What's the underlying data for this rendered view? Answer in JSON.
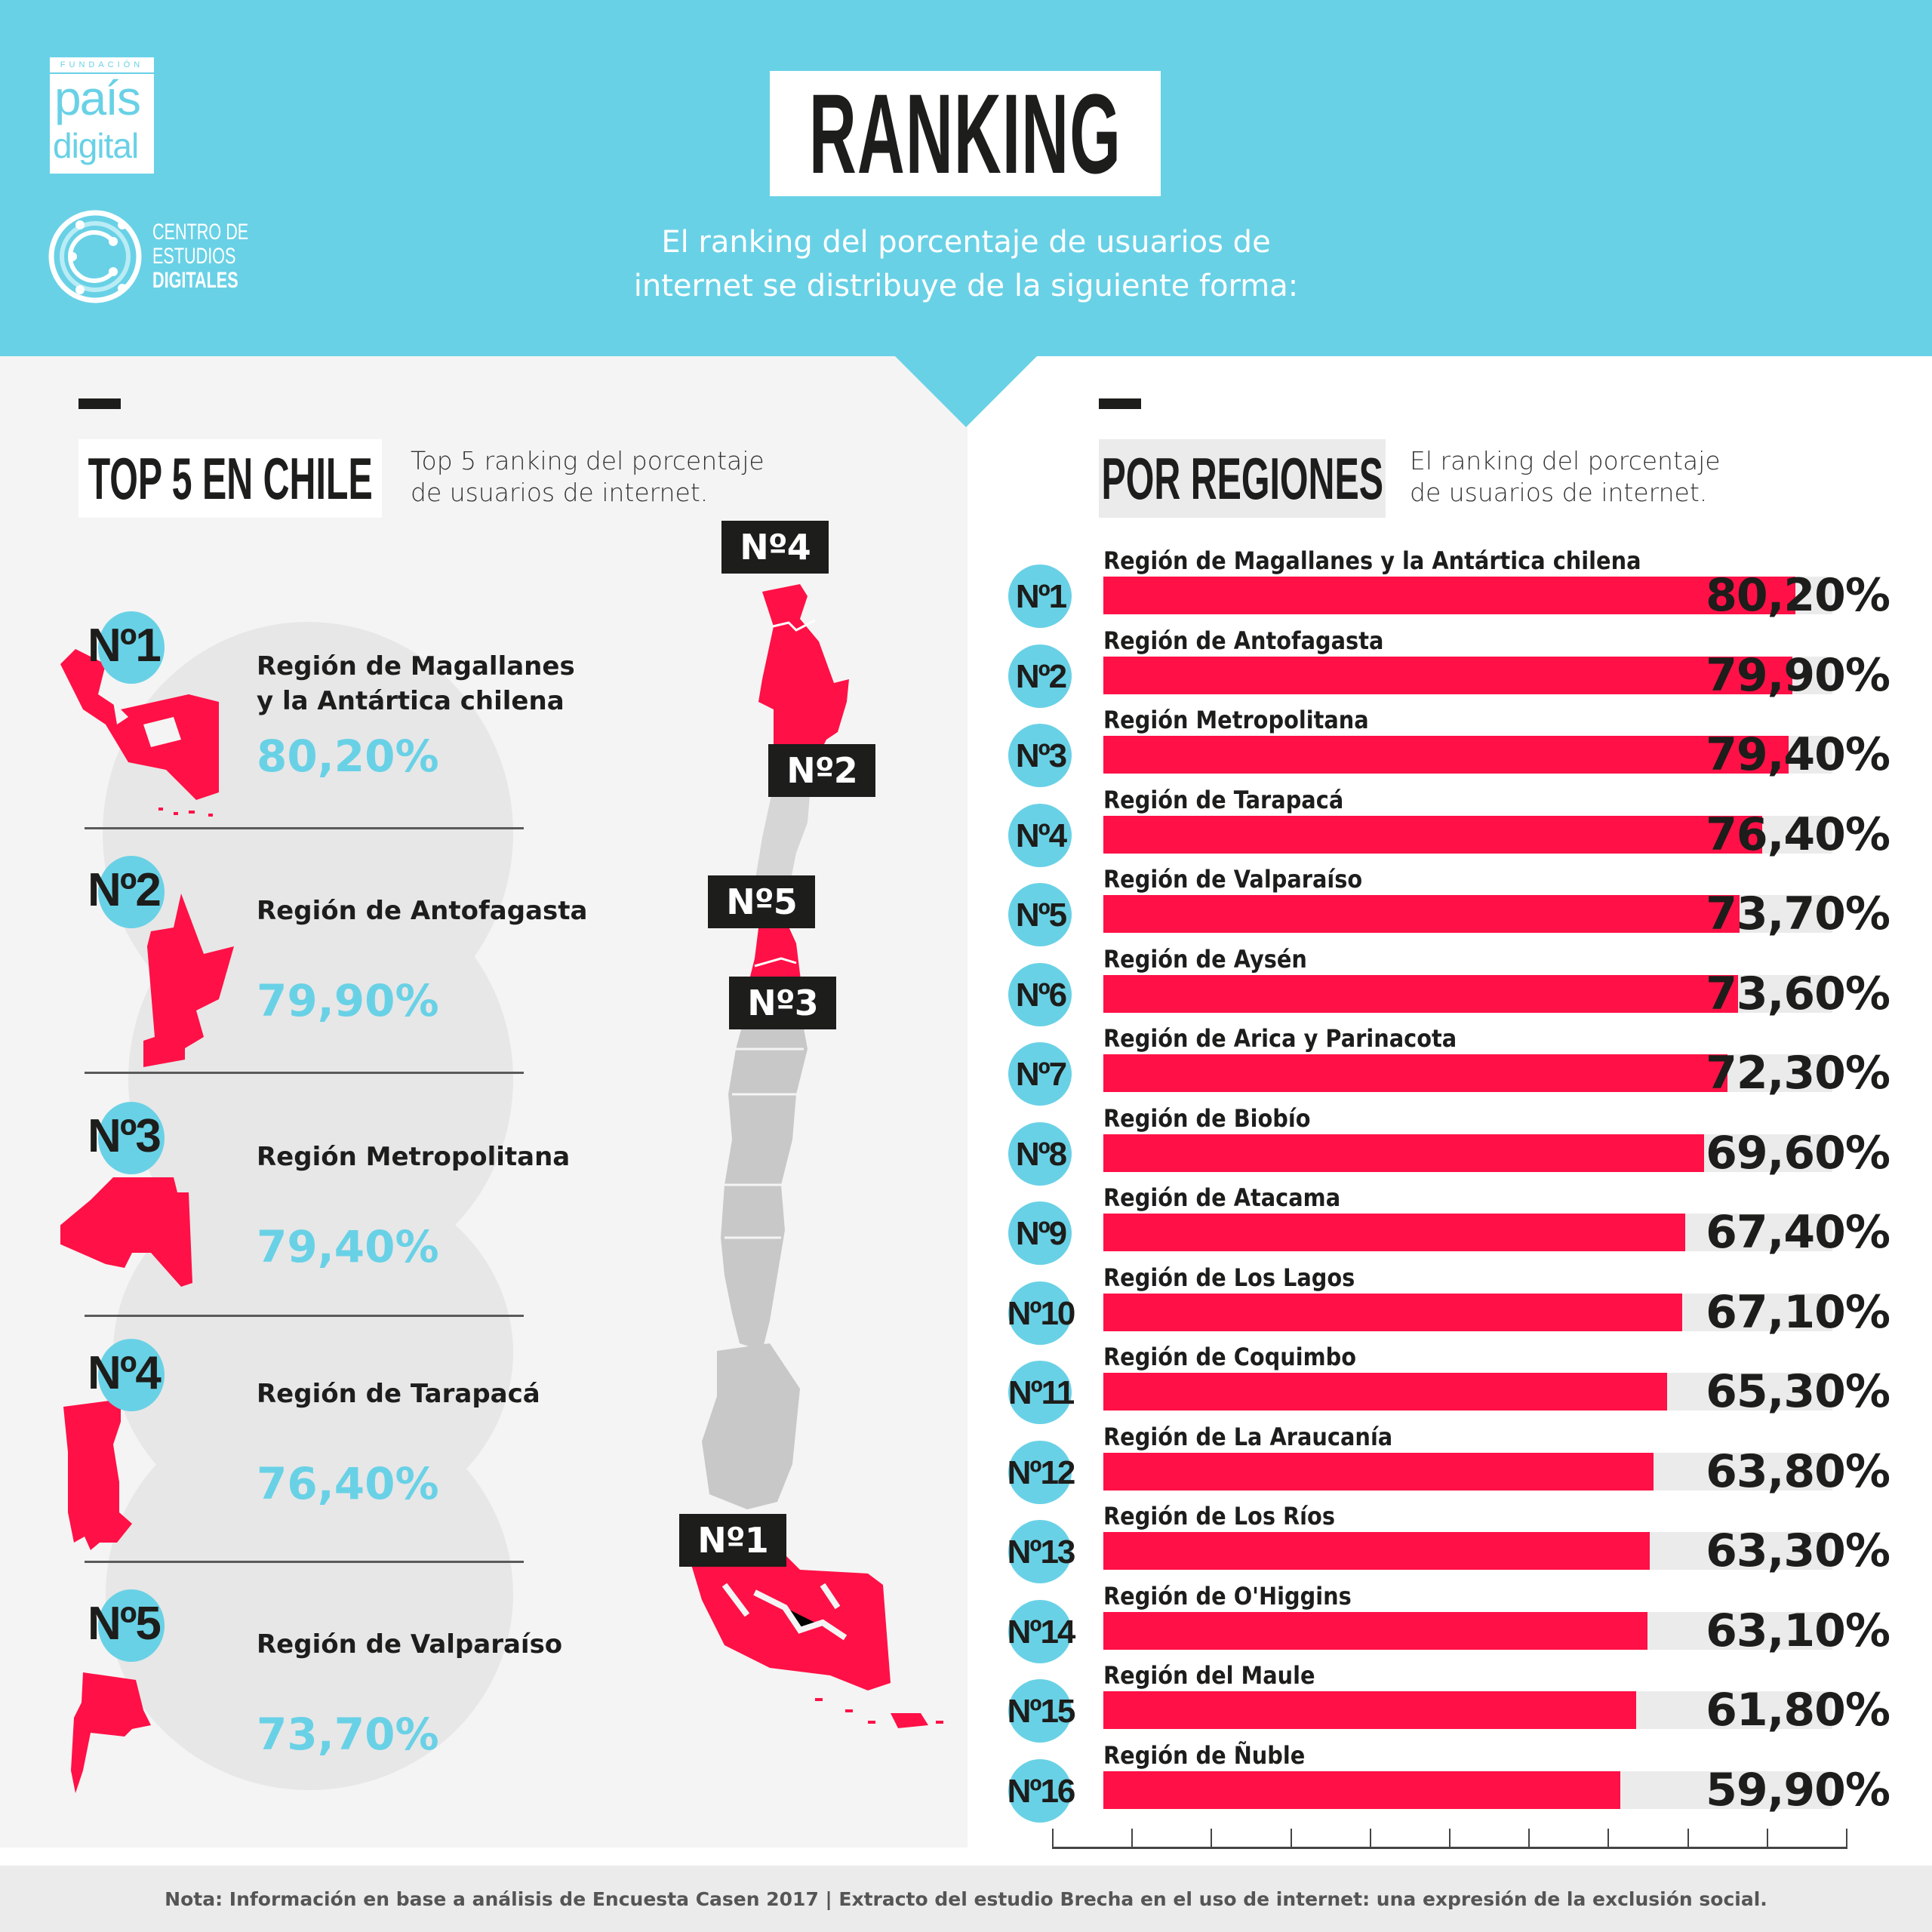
{
  "header": {
    "logo_fundacion": "FUNDACIÓN",
    "logo_pais": "país",
    "logo_digital": "digital",
    "logo_ced_line1": "CENTRO DE",
    "logo_ced_line2": "ESTUDIOS",
    "logo_ced_line3": "DIGITALES",
    "title": "RANKING",
    "subtitle_line1": "El ranking del porcentaje de usuarios de",
    "subtitle_line2": "internet se distribuye de la siguiente forma:"
  },
  "colors": {
    "accent_blue": "#69d1e6",
    "bar_red": "#ff1046",
    "dark": "#1d1d1b",
    "track_gray": "#ebebeb",
    "panel_gray": "#f4f4f4"
  },
  "top5": {
    "title": "TOP 5 EN CHILE",
    "desc_line1": "Top 5 ranking del porcentaje",
    "desc_line2": "de usuarios de internet.",
    "items": [
      {
        "rank": "Nº1",
        "name": "Región de Magallanes y la Antártica chilena",
        "pct": "80,20%"
      },
      {
        "rank": "Nº2",
        "name": "Región de Antofagasta",
        "pct": "79,90%"
      },
      {
        "rank": "Nº3",
        "name": "Región Metropolitana",
        "pct": "79,40%"
      },
      {
        "rank": "Nº4",
        "name": "Región de Tarapacá",
        "pct": "76,40%"
      },
      {
        "rank": "Nº5",
        "name": "Región de Valparaíso",
        "pct": "73,70%"
      }
    ]
  },
  "map": {
    "tags": [
      "Nº4",
      "Nº2",
      "Nº5",
      "Nº3",
      "Nº1"
    ]
  },
  "regiones": {
    "title": "POR REGIONES",
    "desc_line1": "El ranking del porcentaje",
    "desc_line2": "de usuarios de internet."
  },
  "chart_data": {
    "type": "bar",
    "orientation": "horizontal",
    "title": "POR REGIONES",
    "subtitle": "El ranking del porcentaje de usuarios de internet.",
    "xlabel": "",
    "ylabel": "",
    "unit": "%",
    "categories": [
      "Región de Magallanes y la Antártica chilena",
      "Región de Antofagasta",
      "Región Metropolitana",
      "Región de Tarapacá",
      "Región de Valparaíso",
      "Región de Aysén",
      "Región de Arica y Parinacota",
      "Región de Biobío",
      "Región de Atacama",
      "Región de Los Lagos",
      "Región de Coquimbo",
      "Región de La Araucanía",
      "Región de Los Ríos",
      "Región de O'Higgins",
      "Región del Maule",
      "Región de Ñuble"
    ],
    "ranks": [
      "Nº1",
      "Nº2",
      "Nº3",
      "Nº4",
      "Nº5",
      "Nº6",
      "Nº7",
      "Nº8",
      "Nº9",
      "Nº10",
      "Nº11",
      "Nº12",
      "Nº13",
      "Nº14",
      "Nº15",
      "Nº16"
    ],
    "values": [
      80.2,
      79.9,
      79.4,
      76.4,
      73.7,
      73.6,
      72.3,
      69.6,
      67.4,
      67.1,
      65.3,
      63.8,
      63.3,
      63.1,
      61.8,
      59.9
    ],
    "labels": [
      "80,20%",
      "79,90%",
      "79,40%",
      "76,40%",
      "73,70%",
      "73,60%",
      "72,30%",
      "69,60%",
      "67,40%",
      "67,10%",
      "65,30%",
      "63,80%",
      "63,30%",
      "63,10%",
      "61,80%",
      "59,90%"
    ],
    "xlim": [
      0,
      100
    ],
    "axis_ticks": 10,
    "grid": false,
    "legend": "none"
  },
  "footer": {
    "note": "Nota: Información en base a análisis de Encuesta Casen 2017 | Extracto del estudio Brecha en el uso de internet: una expresión de la exclusión social."
  }
}
